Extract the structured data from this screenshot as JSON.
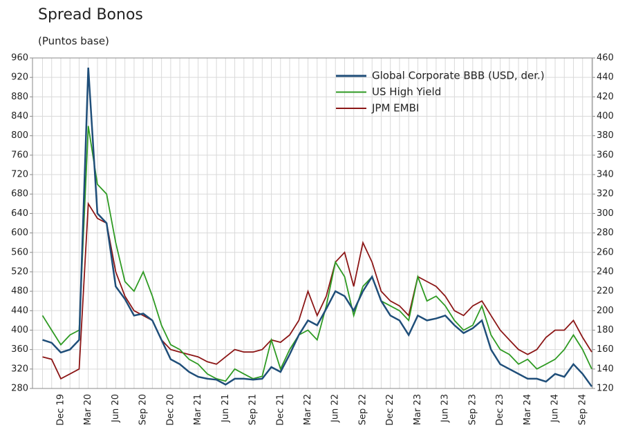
{
  "chart_data": {
    "type": "line",
    "title": "Spread Bonos",
    "subtitle": "(Puntos base)",
    "categories": [
      null,
      null,
      "Dec 19",
      null,
      null,
      "Mar 20",
      null,
      null,
      "Jun 20",
      null,
      null,
      "Sep 20",
      null,
      null,
      "Dec 20",
      null,
      null,
      "Mar 21",
      null,
      null,
      "Jun 21",
      null,
      null,
      "Sep 21",
      null,
      null,
      "Dec 21",
      null,
      null,
      "Mar 22",
      null,
      null,
      "Jun 22",
      null,
      null,
      "Sep 22",
      null,
      null,
      "Dec 22",
      null,
      null,
      "Mar 23",
      null,
      null,
      "Jun 23",
      null,
      null,
      "Sep 23",
      null,
      null,
      "Dec 23",
      null,
      null,
      "Mar 24",
      null,
      null,
      "Jun 24",
      null,
      null,
      "Sep 24",
      null
    ],
    "series": [
      {
        "name": "Global Corporate BBB (USD, der.)",
        "color": "#1f4e79",
        "axis": "y2",
        "values": [
          170,
          167,
          157,
          160,
          170,
          450,
          300,
          290,
          225,
          212,
          195,
          197,
          190,
          170,
          150,
          145,
          137,
          132,
          130,
          129,
          124,
          130,
          130,
          129,
          130,
          142,
          137,
          155,
          175,
          190,
          185,
          202,
          220,
          215,
          200,
          220,
          235,
          210,
          195,
          190,
          175,
          195,
          190,
          192,
          195,
          185,
          177,
          182,
          190,
          160,
          145,
          140,
          135,
          130,
          130,
          127,
          135,
          132,
          145,
          135,
          122
        ]
      },
      {
        "name": "US High Yield",
        "color": "#2e9a22",
        "values": [
          430,
          400,
          370,
          390,
          400,
          820,
          700,
          680,
          580,
          500,
          480,
          520,
          470,
          410,
          370,
          360,
          340,
          330,
          310,
          300,
          295,
          320,
          310,
          300,
          305,
          380,
          320,
          360,
          390,
          400,
          380,
          450,
          540,
          510,
          430,
          490,
          510,
          460,
          450,
          440,
          420,
          510,
          460,
          470,
          450,
          420,
          400,
          410,
          450,
          390,
          360,
          350,
          330,
          340,
          320,
          330,
          340,
          360,
          390,
          360,
          320
        ]
      },
      {
        "name": "JPM EMBI",
        "color": "#8b1515",
        "values": [
          345,
          340,
          300,
          310,
          320,
          660,
          630,
          620,
          520,
          470,
          440,
          430,
          420,
          380,
          360,
          355,
          350,
          345,
          335,
          330,
          345,
          360,
          355,
          355,
          360,
          380,
          375,
          390,
          420,
          480,
          430,
          470,
          540,
          560,
          490,
          580,
          540,
          480,
          460,
          450,
          430,
          510,
          500,
          490,
          470,
          440,
          430,
          450,
          460,
          430,
          400,
          380,
          360,
          350,
          360,
          385,
          400,
          400,
          420,
          385,
          355
        ]
      }
    ],
    "ylim": [
      280,
      960
    ],
    "yticks": [
      280,
      320,
      360,
      400,
      440,
      480,
      520,
      560,
      600,
      640,
      680,
      720,
      760,
      800,
      840,
      880,
      920,
      960
    ],
    "y2lim": [
      120,
      460
    ],
    "y2ticks": [
      120,
      140,
      160,
      180,
      200,
      220,
      240,
      260,
      280,
      300,
      320,
      340,
      360,
      380,
      400,
      420,
      440,
      460
    ],
    "grid": true,
    "legend": "top-right"
  }
}
